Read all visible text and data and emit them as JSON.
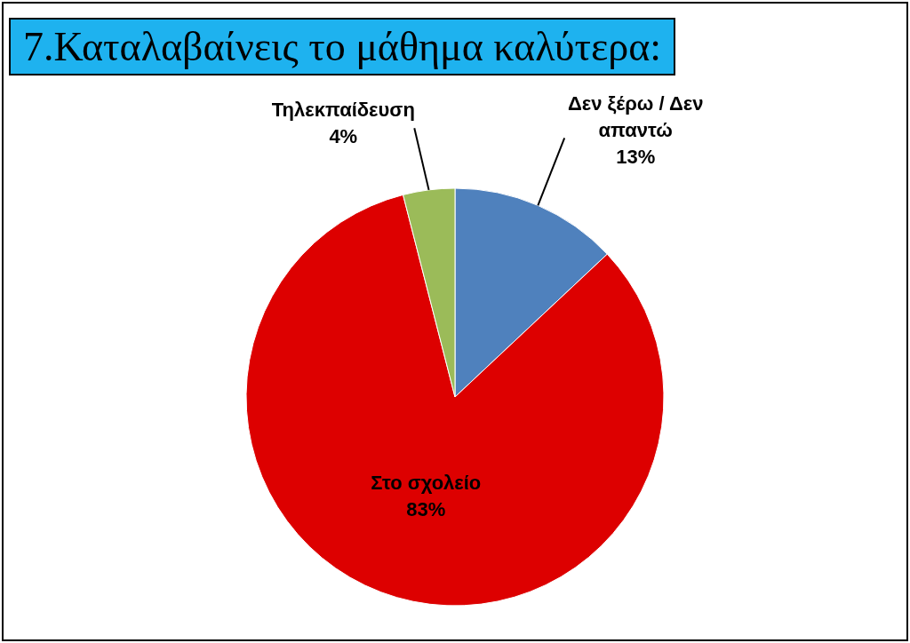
{
  "chart_data": {
    "type": "pie",
    "title": "7.Καταλαβαίνεις το μάθημα καλύτερα:",
    "categories": [
      "Δεν ξέρω / Δεν απαντώ",
      "Στο σχολείο",
      "Τηλεκπαίδευση"
    ],
    "values": [
      13,
      83,
      4
    ],
    "colors": [
      "#4f81bd",
      "#dd0000",
      "#9bbb59"
    ],
    "value_labels": [
      "13%",
      "83%",
      "4%"
    ],
    "legend": false
  }
}
